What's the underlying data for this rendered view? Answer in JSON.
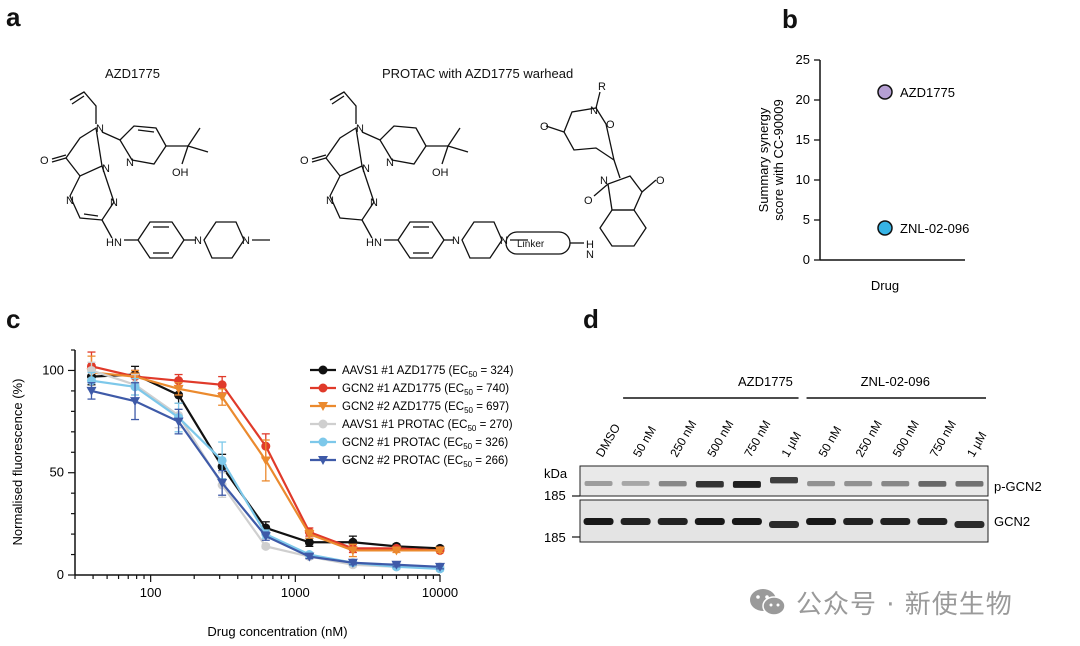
{
  "panels": {
    "a": "a",
    "b": "b",
    "c": "c",
    "d": "d"
  },
  "panel_a": {
    "title_left": "AZD1775",
    "title_right": "PROTAC with AZD1775 warhead",
    "atoms": {
      "O": "O",
      "N": "N",
      "OH": "OH",
      "HN": "HN",
      "NH": "H",
      "R": "R",
      "Linker": "Linker"
    }
  },
  "panel_b_chart": {
    "type": "scatter",
    "xlabel": "Drug",
    "ylabel_line1": "Summary synergy",
    "ylabel_line2": "score with CC-90009",
    "ylim": [
      0,
      25
    ],
    "yticks": [
      "0",
      "5",
      "10",
      "15",
      "20",
      "25"
    ],
    "points": [
      {
        "label": "AZD1775",
        "value": 21,
        "color": "#b59fd3"
      },
      {
        "label": "ZNL-02-096",
        "value": 4,
        "color": "#36b4e6"
      }
    ]
  },
  "chart_data": {
    "type": "line",
    "xlabel": "Drug concentration (nM)",
    "ylabel": "Normalised fluorescence (%)",
    "xscale": "log",
    "xlim": [
      30,
      10000
    ],
    "ylim": [
      0,
      110
    ],
    "xticks": [
      "100",
      "1000",
      "10000"
    ],
    "yticks": [
      "0",
      "50",
      "100"
    ],
    "x": [
      39,
      78,
      156,
      312,
      625,
      1250,
      2500,
      5000,
      10000
    ],
    "series": [
      {
        "name": "AAVS1 #1 AZD1775 (EC",
        "ec": "324",
        "color": "#111111",
        "marker": "circle",
        "values": [
          97,
          98,
          88,
          53,
          23,
          16,
          16,
          14,
          13
        ],
        "err": [
          4,
          4,
          4,
          6,
          3,
          2,
          3,
          1,
          1
        ]
      },
      {
        "name": "GCN2 #1 AZD1775 (EC",
        "ec": "740",
        "color": "#e03a2a",
        "marker": "circle",
        "values": [
          102,
          97,
          95,
          93,
          63,
          21,
          13,
          13,
          12
        ],
        "err": [
          7,
          3,
          3,
          4,
          6,
          2,
          2,
          1,
          1
        ]
      },
      {
        "name": "GCN2 #2 AZD1775 (EC",
        "ec": "697",
        "color": "#eb8a2e",
        "marker": "triangle-down",
        "values": [
          99,
          97,
          91,
          87,
          56,
          20,
          12,
          12,
          12
        ],
        "err": [
          8,
          3,
          3,
          4,
          10,
          2,
          3,
          1,
          1
        ]
      },
      {
        "name": "AAVS1 #1 PROTAC (EC",
        "ec": "270",
        "color": "#cfcfcf",
        "marker": "circle",
        "values": [
          100,
          93,
          78,
          44,
          14,
          9,
          5,
          4,
          4
        ],
        "err": [
          4,
          5,
          6,
          6,
          1,
          1,
          1,
          1,
          1
        ]
      },
      {
        "name": "GCN2 #1 PROTAC (EC",
        "ec": "326",
        "color": "#7dc8ea",
        "marker": "circle",
        "values": [
          95,
          92,
          77,
          56,
          20,
          10,
          6,
          4,
          3
        ],
        "err": [
          4,
          4,
          7,
          9,
          2,
          1,
          1,
          1,
          1
        ]
      },
      {
        "name": "GCN2 #2 PROTAC (EC",
        "ec": "266",
        "color": "#3e5aa8",
        "marker": "triangle-down",
        "values": [
          90,
          85,
          75,
          45,
          19,
          9,
          6,
          5,
          4
        ],
        "err": [
          4,
          9,
          6,
          6,
          2,
          1,
          1,
          1,
          1
        ]
      }
    ],
    "ec_subscript": "50",
    "ec_suffix": ")"
  },
  "panel_d": {
    "group1": "AZD1775",
    "group2": "ZNL-02-096",
    "lanes": [
      "DMSO",
      "50 nM",
      "250 nM",
      "500 nM",
      "750 nM",
      "1 µM",
      "50 nM",
      "250 nM",
      "500 nM",
      "750 nM",
      "1 µM"
    ],
    "kda": "kDa",
    "marker1": "185",
    "marker2": "185",
    "band1": "p-GCN2",
    "band2": "GCN2",
    "pgcn2_intensity": [
      0.35,
      0.3,
      0.45,
      0.85,
      0.95,
      0.8,
      0.4,
      0.4,
      0.45,
      0.6,
      0.55
    ],
    "gcn2_intensity": [
      0.95,
      0.9,
      0.9,
      0.95,
      0.95,
      0.85,
      0.95,
      0.9,
      0.9,
      0.9,
      0.85
    ]
  },
  "watermark": {
    "icon": "wechat-icon",
    "text": "公众号 · 新使生物"
  }
}
